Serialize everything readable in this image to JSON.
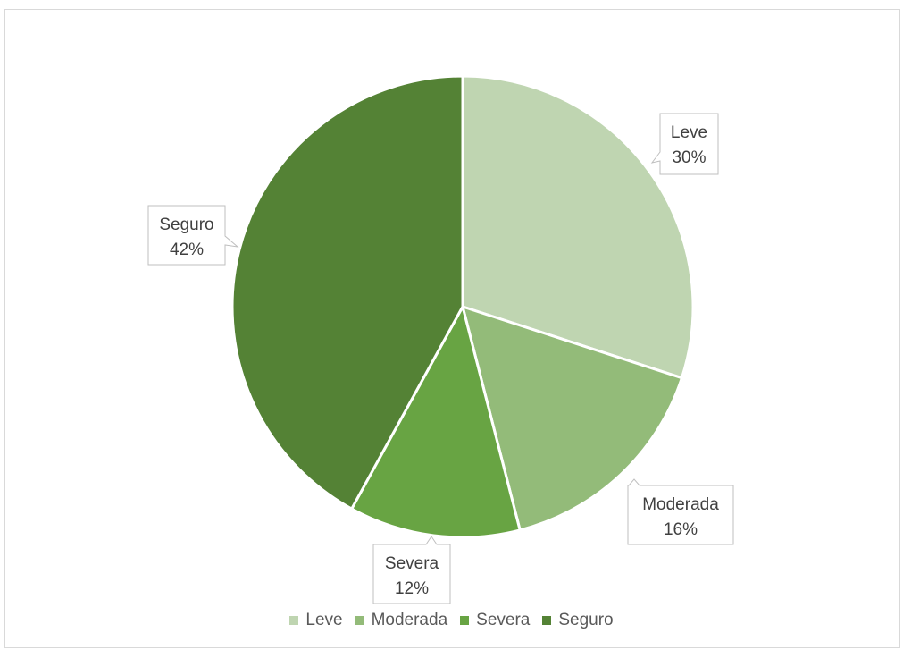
{
  "chart_data": {
    "type": "pie",
    "title": "",
    "start_angle_deg": 0,
    "direction": "clockwise",
    "slices": [
      {
        "label": "Leve",
        "value": 30,
        "display": "30%",
        "color": "#bfd5b1"
      },
      {
        "label": "Moderada",
        "value": 16,
        "display": "16%",
        "color": "#93bb79"
      },
      {
        "label": "Severa",
        "value": 12,
        "display": "12%",
        "color": "#68a443"
      },
      {
        "label": "Seguro",
        "value": 42,
        "display": "42%",
        "color": "#548235"
      }
    ],
    "legend_position": "bottom",
    "data_labels": "callout"
  }
}
